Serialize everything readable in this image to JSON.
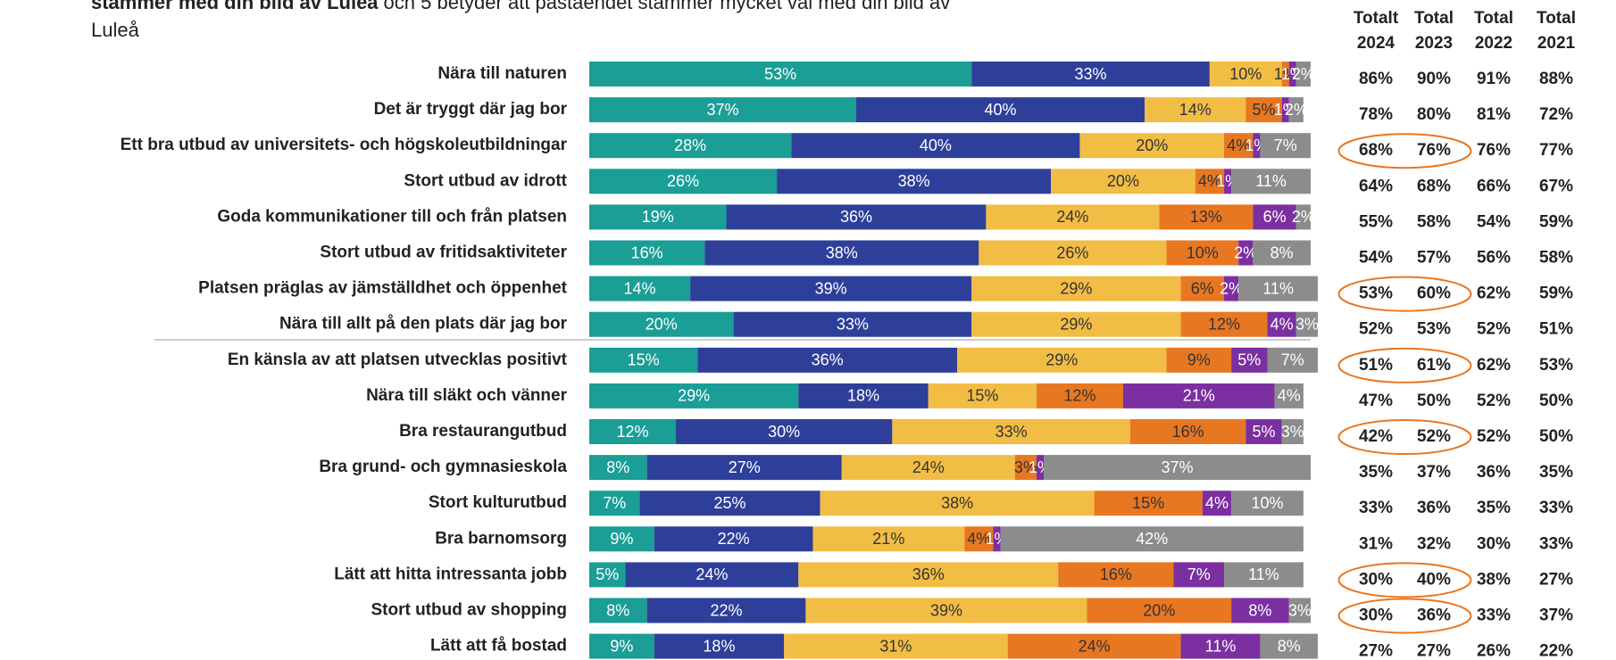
{
  "chart_data": {
    "type": "stacked_barh",
    "subtitle_bold": "stämmer med din bild av Luleå",
    "subtitle": "och 5 betyder att påståendet stämmer mycket väl med din bild av",
    "subtitle_line2": "Luleå",
    "categories": [
      "Nära till naturen",
      "Det är tryggt där jag bor",
      "Ett bra utbud av universitets- och högskoleutbildningar",
      "Stort utbud av idrott",
      "Goda kommunikationer till och från platsen",
      "Stort utbud av fritidsaktiviteter",
      "Platsen präglas av jämställdhet och öppenhet",
      "Nära till allt på den plats där jag bor",
      "En känsla av att platsen utvecklas positivt",
      "Nära till släkt och vänner",
      "Bra restaurangutbud",
      "Bra grund- och gymnasieskola",
      "Stort kulturutbud",
      "Bra barnomsorg",
      "Lätt att hitta intressanta jobb",
      "Stort utbud av shopping",
      "Lätt att få bostad"
    ],
    "xlim": [
      0,
      100
    ],
    "series": [
      {
        "color": "#1a9e96",
        "label_color": "#ffffff",
        "values": [
          53,
          37,
          28,
          26,
          19,
          16,
          14,
          20,
          15,
          29,
          12,
          8,
          7,
          9,
          5,
          8,
          9
        ],
        "value_labels": [
          "53%",
          "37%",
          "28%",
          "26%",
          "19%",
          "16%",
          "14%",
          "20%",
          "15%",
          "29%",
          "12%",
          "8%",
          "7%",
          "9%",
          "5%",
          "8%",
          "9%"
        ]
      },
      {
        "color": "#2e3f9a",
        "label_color": "#ffffff",
        "values": [
          33,
          40,
          40,
          38,
          36,
          38,
          39,
          33,
          36,
          18,
          30,
          27,
          25,
          22,
          24,
          22,
          18
        ],
        "value_labels": [
          "33%",
          "40%",
          "40%",
          "38%",
          "36%",
          "38%",
          "39%",
          "33%",
          "36%",
          "18%",
          "30%",
          "27%",
          "25%",
          "22%",
          "24%",
          "22%",
          "18%"
        ]
      },
      {
        "color": "#f2bd45",
        "label_color": "#333333",
        "values": [
          10,
          14,
          20,
          20,
          24,
          26,
          29,
          29,
          29,
          15,
          33,
          24,
          38,
          21,
          36,
          39,
          31
        ],
        "value_labels": [
          "10%",
          "14%",
          "20%",
          "20%",
          "24%",
          "26%",
          "29%",
          "29%",
          "29%",
          "15%",
          "33%",
          "24%",
          "38%",
          "21%",
          "36%",
          "39%",
          "31%"
        ]
      },
      {
        "color": "#e87722",
        "label_color": "#333333",
        "values": [
          1,
          5,
          4,
          4,
          13,
          10,
          6,
          12,
          9,
          12,
          16,
          3,
          15,
          4,
          16,
          20,
          24
        ],
        "value_labels": [
          "1%",
          "5%",
          "4%",
          "4%",
          "13%",
          "10%",
          "6%",
          "12%",
          "9%",
          "12%",
          "16%",
          "3%",
          "15%",
          "4%",
          "16%",
          "20%",
          "24%"
        ]
      },
      {
        "color": "#7b2fa0",
        "label_color": "#ffffff",
        "values": [
          1,
          1,
          1,
          1,
          6,
          2,
          2,
          4,
          5,
          21,
          5,
          1,
          4,
          1,
          7,
          8,
          11
        ],
        "value_labels": [
          "1%",
          "1%",
          "1%",
          "1%",
          "6%",
          "2%",
          "2%",
          "4%",
          "5%",
          "21%",
          "5%",
          "1%",
          "4%",
          "1%",
          "7%",
          "8%",
          "11%"
        ]
      },
      {
        "color": "#8c8c8c",
        "label_color": "#ffffff",
        "values": [
          2,
          2,
          7,
          11,
          2,
          8,
          11,
          3,
          7,
          4,
          3,
          37,
          10,
          42,
          11,
          3,
          8
        ],
        "value_labels": [
          "2%",
          "2%",
          "7%",
          "11%",
          "2%",
          "8%",
          "11%",
          "3%",
          "7%",
          "4%",
          "3%",
          "37%",
          "10%",
          "42%",
          "11%",
          "3%",
          "8%"
        ]
      }
    ]
  },
  "table": {
    "headers": [
      [
        "Totalt",
        "2024"
      ],
      [
        "Total",
        "2023"
      ],
      [
        "Total",
        "2022"
      ],
      [
        "Total",
        "2021"
      ]
    ],
    "rows": [
      [
        "86%",
        "90%",
        "91%",
        "88%"
      ],
      [
        "78%",
        "80%",
        "81%",
        "72%"
      ],
      [
        "68%",
        "76%",
        "76%",
        "77%"
      ],
      [
        "64%",
        "68%",
        "66%",
        "67%"
      ],
      [
        "55%",
        "58%",
        "54%",
        "59%"
      ],
      [
        "54%",
        "57%",
        "56%",
        "58%"
      ],
      [
        "53%",
        "60%",
        "62%",
        "59%"
      ],
      [
        "52%",
        "53%",
        "52%",
        "51%"
      ],
      [
        "51%",
        "61%",
        "62%",
        "53%"
      ],
      [
        "47%",
        "50%",
        "52%",
        "50%"
      ],
      [
        "42%",
        "52%",
        "52%",
        "50%"
      ],
      [
        "35%",
        "37%",
        "36%",
        "35%"
      ],
      [
        "33%",
        "36%",
        "35%",
        "33%"
      ],
      [
        "31%",
        "32%",
        "30%",
        "33%"
      ],
      [
        "30%",
        "40%",
        "38%",
        "27%"
      ],
      [
        "30%",
        "36%",
        "33%",
        "37%"
      ],
      [
        "27%",
        "27%",
        "26%",
        "22%"
      ]
    ],
    "circled_rows": [
      2,
      6,
      8,
      10,
      14,
      15
    ],
    "circle_color": "#e87722"
  }
}
